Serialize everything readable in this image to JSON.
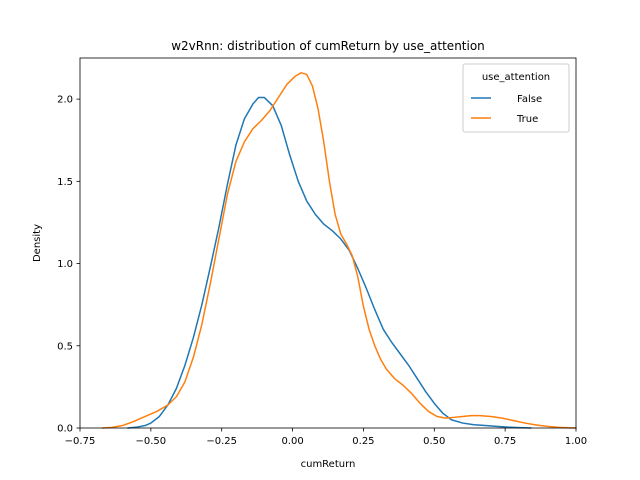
{
  "chart_data": {
    "type": "line",
    "title": "w2vRnn: distribution of cumReturn by use_attention",
    "xlabel": "cumReturn",
    "ylabel": "Density",
    "xlim": [
      -0.75,
      1.0
    ],
    "ylim": [
      0.0,
      2.25
    ],
    "xticks": [
      -0.75,
      -0.5,
      -0.25,
      0.0,
      0.25,
      0.5,
      0.75,
      1.0
    ],
    "xtick_labels": [
      "−0.75",
      "−0.50",
      "−0.25",
      "0.00",
      "0.25",
      "0.50",
      "0.75",
      "1.00"
    ],
    "yticks": [
      0.0,
      0.5,
      1.0,
      1.5,
      2.0
    ],
    "ytick_labels": [
      "0.0",
      "0.5",
      "1.0",
      "1.5",
      "2.0"
    ],
    "grid": false,
    "legend": {
      "title": "use_attention",
      "placement": "top-right"
    },
    "series": [
      {
        "name": "False",
        "color": "#1f77b4",
        "points": [
          [
            -0.58,
            0.0
          ],
          [
            -0.55,
            0.005
          ],
          [
            -0.52,
            0.015
          ],
          [
            -0.5,
            0.03
          ],
          [
            -0.47,
            0.07
          ],
          [
            -0.44,
            0.14
          ],
          [
            -0.41,
            0.24
          ],
          [
            -0.38,
            0.38
          ],
          [
            -0.35,
            0.55
          ],
          [
            -0.32,
            0.75
          ],
          [
            -0.29,
            0.98
          ],
          [
            -0.26,
            1.22
          ],
          [
            -0.23,
            1.48
          ],
          [
            -0.2,
            1.72
          ],
          [
            -0.17,
            1.88
          ],
          [
            -0.14,
            1.97
          ],
          [
            -0.12,
            2.01
          ],
          [
            -0.1,
            2.01
          ],
          [
            -0.07,
            1.96
          ],
          [
            -0.04,
            1.84
          ],
          [
            -0.01,
            1.66
          ],
          [
            0.02,
            1.5
          ],
          [
            0.05,
            1.38
          ],
          [
            0.08,
            1.3
          ],
          [
            0.11,
            1.24
          ],
          [
            0.14,
            1.2
          ],
          [
            0.17,
            1.15
          ],
          [
            0.2,
            1.08
          ],
          [
            0.23,
            0.97
          ],
          [
            0.26,
            0.85
          ],
          [
            0.29,
            0.72
          ],
          [
            0.32,
            0.6
          ],
          [
            0.35,
            0.52
          ],
          [
            0.38,
            0.45
          ],
          [
            0.41,
            0.38
          ],
          [
            0.44,
            0.3
          ],
          [
            0.47,
            0.22
          ],
          [
            0.5,
            0.15
          ],
          [
            0.53,
            0.09
          ],
          [
            0.56,
            0.05
          ],
          [
            0.6,
            0.03
          ],
          [
            0.64,
            0.02
          ],
          [
            0.68,
            0.015
          ],
          [
            0.72,
            0.01
          ],
          [
            0.76,
            0.005
          ],
          [
            0.8,
            0.002
          ],
          [
            0.84,
            0.0
          ]
        ]
      },
      {
        "name": "True",
        "color": "#ff7f0e",
        "points": [
          [
            -0.67,
            0.0
          ],
          [
            -0.64,
            0.003
          ],
          [
            -0.6,
            0.015
          ],
          [
            -0.56,
            0.04
          ],
          [
            -0.52,
            0.07
          ],
          [
            -0.48,
            0.1
          ],
          [
            -0.44,
            0.14
          ],
          [
            -0.41,
            0.19
          ],
          [
            -0.38,
            0.28
          ],
          [
            -0.35,
            0.43
          ],
          [
            -0.32,
            0.63
          ],
          [
            -0.29,
            0.88
          ],
          [
            -0.26,
            1.15
          ],
          [
            -0.23,
            1.42
          ],
          [
            -0.2,
            1.62
          ],
          [
            -0.17,
            1.74
          ],
          [
            -0.14,
            1.82
          ],
          [
            -0.11,
            1.87
          ],
          [
            -0.08,
            1.93
          ],
          [
            -0.05,
            2.01
          ],
          [
            -0.02,
            2.09
          ],
          [
            0.01,
            2.14
          ],
          [
            0.03,
            2.16
          ],
          [
            0.05,
            2.15
          ],
          [
            0.07,
            2.08
          ],
          [
            0.09,
            1.94
          ],
          [
            0.11,
            1.74
          ],
          [
            0.13,
            1.5
          ],
          [
            0.15,
            1.3
          ],
          [
            0.17,
            1.18
          ],
          [
            0.19,
            1.12
          ],
          [
            0.21,
            1.05
          ],
          [
            0.23,
            0.92
          ],
          [
            0.25,
            0.74
          ],
          [
            0.27,
            0.6
          ],
          [
            0.29,
            0.5
          ],
          [
            0.31,
            0.42
          ],
          [
            0.33,
            0.36
          ],
          [
            0.36,
            0.3
          ],
          [
            0.39,
            0.26
          ],
          [
            0.42,
            0.21
          ],
          [
            0.45,
            0.15
          ],
          [
            0.48,
            0.1
          ],
          [
            0.51,
            0.07
          ],
          [
            0.54,
            0.06
          ],
          [
            0.57,
            0.065
          ],
          [
            0.6,
            0.07
          ],
          [
            0.63,
            0.075
          ],
          [
            0.66,
            0.075
          ],
          [
            0.7,
            0.07
          ],
          [
            0.74,
            0.06
          ],
          [
            0.78,
            0.045
          ],
          [
            0.82,
            0.03
          ],
          [
            0.86,
            0.018
          ],
          [
            0.9,
            0.01
          ],
          [
            0.94,
            0.004
          ],
          [
            0.98,
            0.001
          ],
          [
            1.0,
            0.0
          ]
        ]
      }
    ]
  }
}
